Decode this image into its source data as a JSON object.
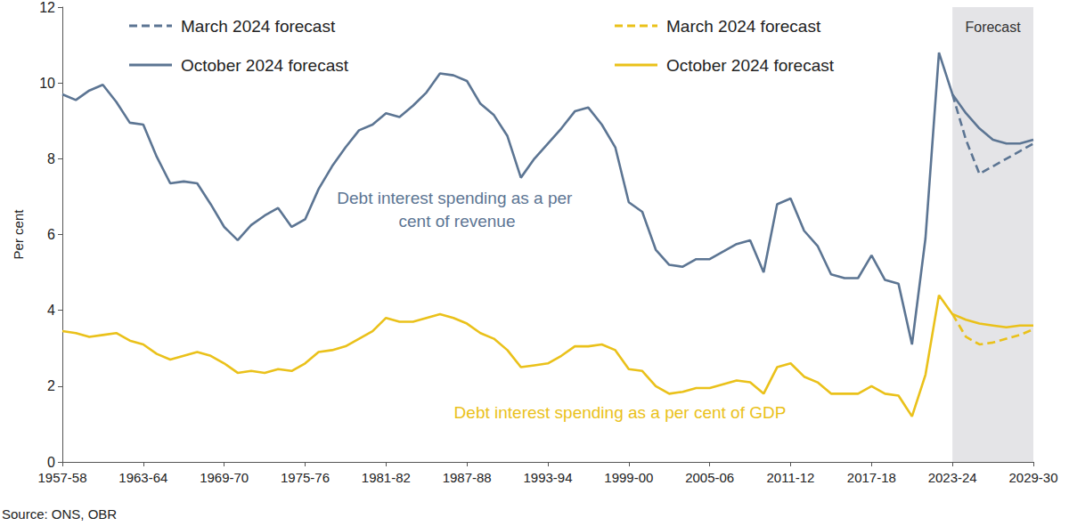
{
  "chart_data": {
    "type": "line",
    "y_label": "Per cent",
    "source": "Source: ONS, OBR",
    "categories": [
      "1957-58",
      null,
      null,
      null,
      null,
      null,
      "1963-64",
      null,
      null,
      null,
      null,
      null,
      "1969-70",
      null,
      null,
      null,
      null,
      null,
      "1975-76",
      null,
      null,
      null,
      null,
      null,
      "1981-82",
      null,
      null,
      null,
      null,
      null,
      "1987-88",
      null,
      null,
      null,
      null,
      null,
      "1993-94",
      null,
      null,
      null,
      null,
      null,
      "1999-00",
      null,
      null,
      null,
      null,
      null,
      "2005-06",
      null,
      null,
      null,
      null,
      null,
      "2011-12",
      null,
      null,
      null,
      null,
      null,
      "2017-18",
      null,
      null,
      null,
      null,
      null,
      "2023-24",
      null,
      null,
      null,
      null,
      null,
      "2029-30"
    ],
    "series": [
      {
        "name": "March 2024 forecast",
        "color": "#5c7593",
        "line_style": "dashed",
        "values": [
          null,
          null,
          null,
          null,
          null,
          null,
          null,
          null,
          null,
          null,
          null,
          null,
          null,
          null,
          null,
          null,
          null,
          null,
          null,
          null,
          null,
          null,
          null,
          null,
          null,
          null,
          null,
          null,
          null,
          null,
          null,
          null,
          null,
          null,
          null,
          null,
          null,
          null,
          null,
          null,
          null,
          null,
          null,
          null,
          null,
          null,
          null,
          null,
          null,
          null,
          null,
          null,
          null,
          null,
          null,
          null,
          null,
          null,
          null,
          null,
          null,
          null,
          null,
          null,
          null,
          null,
          9.7,
          8.5,
          7.6,
          7.8,
          8.0,
          8.2,
          8.4
        ]
      },
      {
        "name": "October 2024 forecast",
        "color": "#5c7593",
        "line_style": "solid",
        "values": [
          9.7,
          9.55,
          9.8,
          9.95,
          9.5,
          8.95,
          8.9,
          8.05,
          7.35,
          7.4,
          7.35,
          6.8,
          6.2,
          5.85,
          6.25,
          6.5,
          6.7,
          6.2,
          6.4,
          7.2,
          7.8,
          8.3,
          8.75,
          8.9,
          9.2,
          9.1,
          9.4,
          9.75,
          10.25,
          10.2,
          10.05,
          9.45,
          9.15,
          8.6,
          7.5,
          8.0,
          8.4,
          8.8,
          9.25,
          9.35,
          8.9,
          8.3,
          6.85,
          6.6,
          5.6,
          5.2,
          5.15,
          5.35,
          5.35,
          5.55,
          5.75,
          5.85,
          5.0,
          6.8,
          6.95,
          6.1,
          5.7,
          4.95,
          4.85,
          4.85,
          5.45,
          4.8,
          4.7,
          3.1,
          5.9,
          10.8,
          9.7,
          9.2,
          8.8,
          8.5,
          8.4,
          8.4,
          8.5
        ]
      },
      {
        "name": "March 2024 forecast",
        "color": "#eac11a",
        "line_style": "dashed",
        "values": [
          null,
          null,
          null,
          null,
          null,
          null,
          null,
          null,
          null,
          null,
          null,
          null,
          null,
          null,
          null,
          null,
          null,
          null,
          null,
          null,
          null,
          null,
          null,
          null,
          null,
          null,
          null,
          null,
          null,
          null,
          null,
          null,
          null,
          null,
          null,
          null,
          null,
          null,
          null,
          null,
          null,
          null,
          null,
          null,
          null,
          null,
          null,
          null,
          null,
          null,
          null,
          null,
          null,
          null,
          null,
          null,
          null,
          null,
          null,
          null,
          null,
          null,
          null,
          null,
          null,
          null,
          3.9,
          3.3,
          3.1,
          3.15,
          3.25,
          3.35,
          3.5
        ]
      },
      {
        "name": "October 2024 forecast",
        "color": "#eac11a",
        "line_style": "solid",
        "values": [
          3.45,
          3.4,
          3.3,
          3.35,
          3.4,
          3.2,
          3.1,
          2.85,
          2.7,
          2.8,
          2.9,
          2.8,
          2.6,
          2.35,
          2.4,
          2.35,
          2.45,
          2.4,
          2.6,
          2.9,
          2.95,
          3.05,
          3.25,
          3.45,
          3.8,
          3.7,
          3.7,
          3.8,
          3.9,
          3.8,
          3.65,
          3.4,
          3.25,
          2.95,
          2.5,
          2.55,
          2.6,
          2.8,
          3.05,
          3.05,
          3.1,
          2.95,
          2.45,
          2.4,
          2.0,
          1.8,
          1.85,
          1.95,
          1.95,
          2.05,
          2.15,
          2.1,
          1.8,
          2.5,
          2.6,
          2.25,
          2.1,
          1.8,
          1.8,
          1.8,
          2.0,
          1.8,
          1.75,
          1.2,
          2.3,
          4.4,
          3.9,
          3.75,
          3.65,
          3.6,
          3.55,
          3.6,
          3.6
        ]
      }
    ],
    "annotations": [
      "Debt interest spending as a per cent of revenue",
      "Debt interest spending as a per cent of GDP"
    ],
    "forecast": {
      "label": "Forecast",
      "start_index": 66
    },
    "ylim": [
      0,
      12
    ],
    "yticks": [
      0,
      2,
      4,
      6,
      8,
      10,
      12
    ],
    "grid": false,
    "legend": "top"
  }
}
